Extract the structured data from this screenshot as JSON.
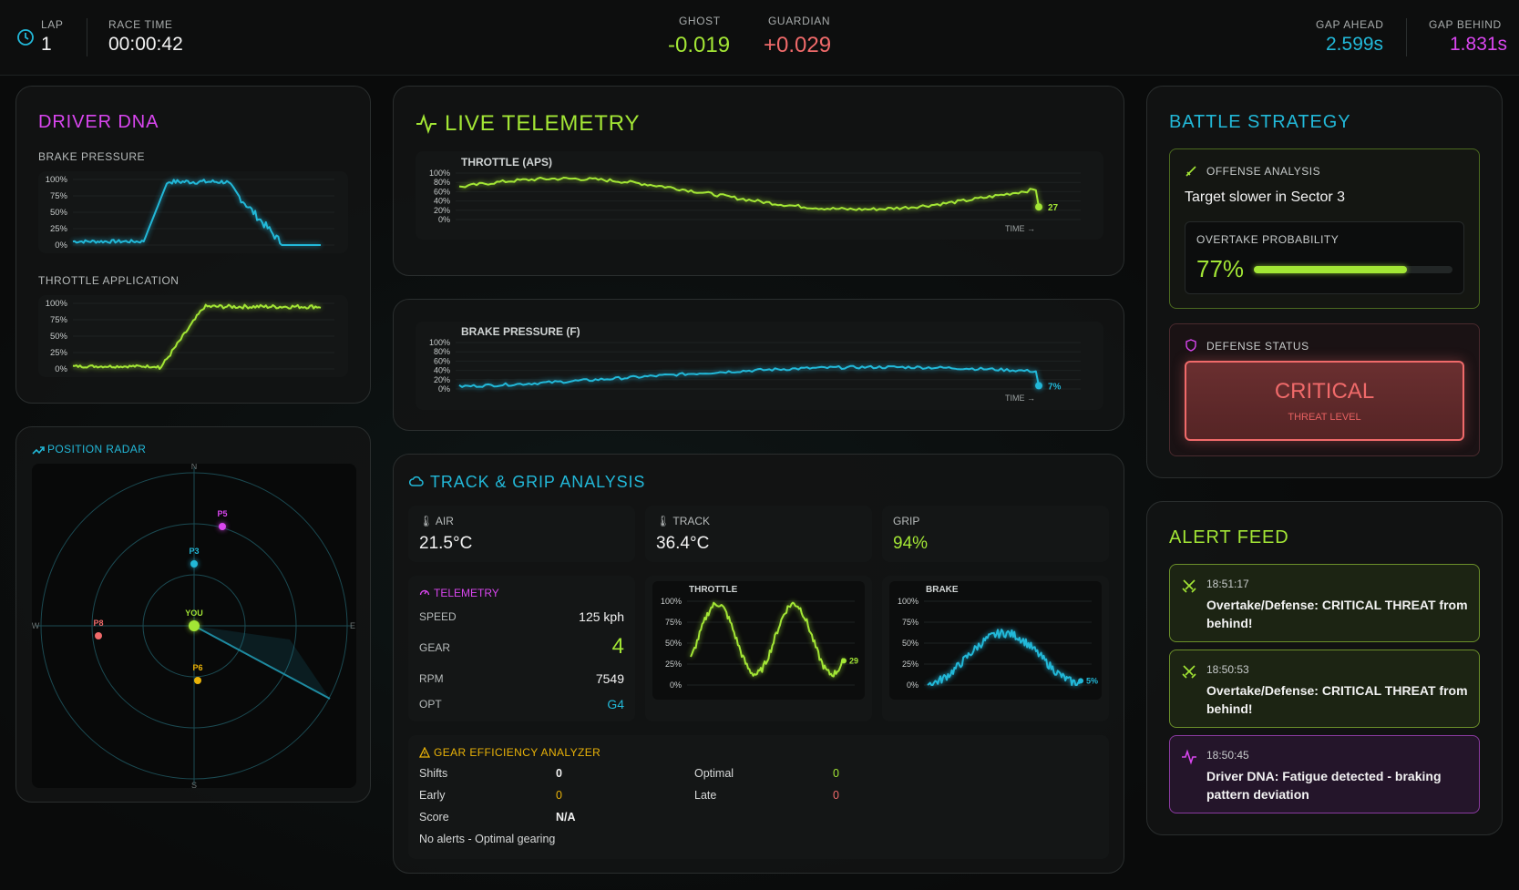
{
  "topbar": {
    "lap_label": "LAP",
    "lap_value": "1",
    "race_time_label": "RACE TIME",
    "race_time_value": "00:00:42",
    "ghost_label": "GHOST",
    "ghost_value": "-0.019",
    "guardian_label": "GUARDIAN",
    "guardian_value": "+0.029",
    "gap_ahead_label": "GAP AHEAD",
    "gap_ahead_value": "2.599s",
    "gap_behind_label": "GAP BEHIND",
    "gap_behind_value": "1.831s"
  },
  "driver_dna": {
    "title": "DRIVER DNA",
    "brake_label": "BRAKE PRESSURE",
    "throttle_label": "THROTTLE APPLICATION",
    "y_ticks": [
      "100%",
      "75%",
      "50%",
      "25%",
      "0%"
    ]
  },
  "radar": {
    "title": "POSITION RADAR",
    "compass": {
      "n": "N",
      "e": "E",
      "s": "S",
      "w": "W"
    },
    "you_label": "YOU",
    "cars": [
      {
        "label": "P5",
        "color": "#d946ef"
      },
      {
        "label": "P3",
        "color": "#22b8d8"
      },
      {
        "label": "P8",
        "color": "#f06a6a"
      },
      {
        "label": "P6",
        "color": "#eab308"
      }
    ]
  },
  "live_telemetry": {
    "title": "LIVE TELEMETRY",
    "throttle_label": "THROTTLE (APS)",
    "throttle_end": "27",
    "brake_label": "BRAKE PRESSURE (F)",
    "brake_end": "7%",
    "time_label": "TIME →",
    "y_ticks": [
      "100%",
      "80%",
      "60%",
      "40%",
      "20%",
      "0%"
    ]
  },
  "track_grip": {
    "title": "TRACK & GRIP ANALYSIS",
    "air_label": "AIR",
    "air_value": "21.5°C",
    "track_label": "TRACK",
    "track_value": "36.4°C",
    "grip_label": "GRIP",
    "grip_value": "94%",
    "telemetry": {
      "title": "TELEMETRY",
      "speed_label": "SPEED",
      "speed_value": "125 kph",
      "gear_label": "GEAR",
      "gear_value": "4",
      "rpm_label": "RPM",
      "rpm_value": "7549",
      "opt_label": "OPT",
      "opt_value": "G4"
    },
    "mini_throttle_label": "THROTTLE",
    "mini_throttle_end": "29",
    "mini_brake_label": "BRAKE",
    "mini_brake_end": "5%",
    "mini_y_ticks": [
      "100%",
      "75%",
      "50%",
      "25%",
      "0%"
    ],
    "gear_efficiency": {
      "title": "GEAR EFFICIENCY ANALYZER",
      "shifts_label": "Shifts",
      "shifts_value": "0",
      "optimal_label": "Optimal",
      "optimal_value": "0",
      "early_label": "Early",
      "early_value": "0",
      "late_label": "Late",
      "late_value": "0",
      "score_label": "Score",
      "score_value": "N/A",
      "status": "No alerts - Optimal gearing"
    }
  },
  "battle_strategy": {
    "title": "BATTLE STRATEGY",
    "offense_label": "OFFENSE ANALYSIS",
    "offense_text": "Target slower in Sector 3",
    "overtake_label": "OVERTAKE PROBABILITY",
    "overtake_value": "77%",
    "overtake_fraction": 0.77,
    "defense_label": "DEFENSE STATUS",
    "defense_status": "CRITICAL",
    "defense_sub": "THREAT LEVEL"
  },
  "alert_feed": {
    "title": "ALERT FEED",
    "alerts": [
      {
        "time": "18:51:17",
        "message": "Overtake/Defense: CRITICAL THREAT from behind!",
        "kind": "swords-icon"
      },
      {
        "time": "18:50:53",
        "message": "Overtake/Defense: CRITICAL THREAT from behind!",
        "kind": "swords-icon"
      },
      {
        "time": "18:50:45",
        "message": "Driver DNA: Fatigue detected - braking pattern deviation",
        "kind": "pulse-icon"
      }
    ]
  },
  "colors": {
    "lime": "#a3e635",
    "cyan": "#22b8d8",
    "magenta": "#d946ef",
    "red": "#f06a6a",
    "amber": "#eab308"
  }
}
